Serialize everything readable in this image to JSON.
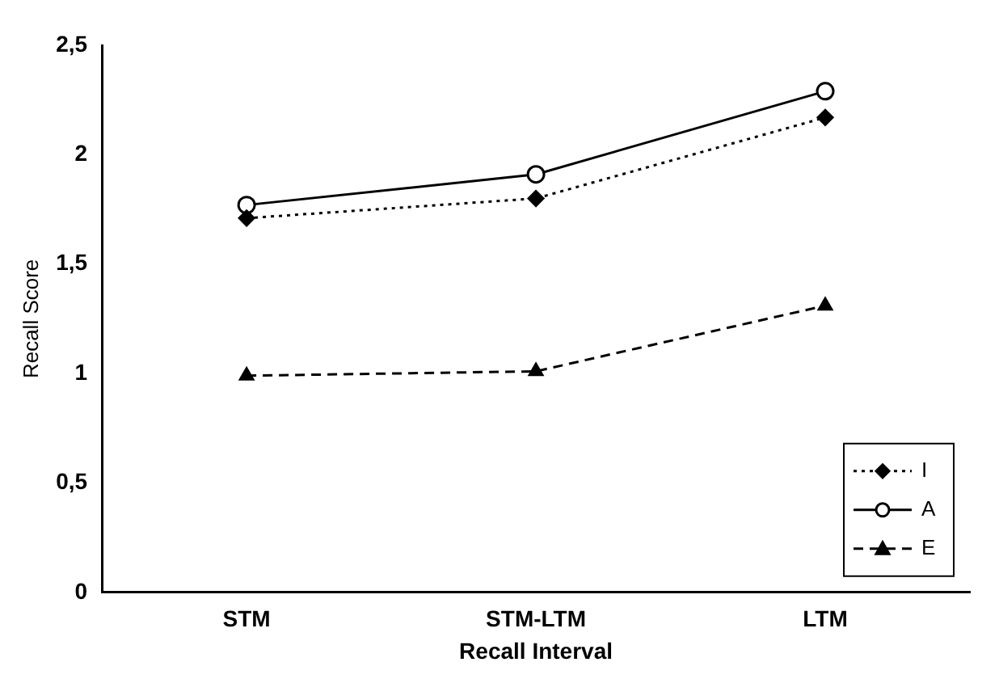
{
  "chart_data": {
    "type": "line",
    "xlabel": "Recall Interval",
    "ylabel": "Recall Score",
    "categories": [
      "STM",
      "STM-LTM",
      "LTM"
    ],
    "series": [
      {
        "name": "I",
        "color": "#000000",
        "values": [
          1.71,
          1.8,
          2.17
        ],
        "marker": "diamond",
        "line_style": "dotted"
      },
      {
        "name": "A",
        "color": "#000000",
        "values": [
          1.77,
          1.91,
          2.29
        ],
        "marker": "circle",
        "line_style": "solid"
      },
      {
        "name": "E",
        "color": "#000000",
        "values": [
          0.99,
          1.01,
          1.31
        ],
        "marker": "triangle",
        "line_style": "dashed"
      }
    ],
    "ylim": [
      0,
      2.5
    ],
    "yticks": [
      0,
      {
        "value": 0.5,
        "label": "0,5"
      },
      1,
      {
        "value": 1.5,
        "label": "1,5"
      },
      2,
      {
        "value": 2.5,
        "label": "2,5"
      }
    ],
    "grid": false,
    "legend": "bottom right"
  }
}
